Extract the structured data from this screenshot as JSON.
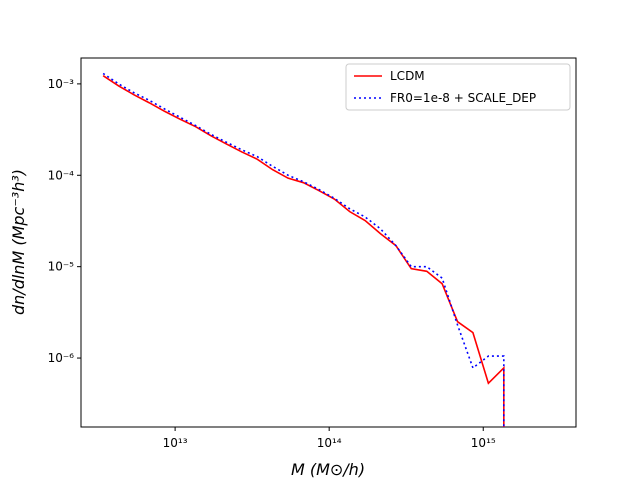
{
  "chart_data": {
    "type": "line",
    "xlabel": "M (M⊙/h)",
    "ylabel": "dn/dlnM (Mpc⁻³h³)",
    "xscale": "log",
    "yscale": "log",
    "xlim": [
      2450000000000.0,
      4000000000000000.0
    ],
    "ylim": [
      1.76e-07,
      0.00192
    ],
    "xticks": [
      {
        "value": 10000000000000.0,
        "label": "10¹³"
      },
      {
        "value": 100000000000000.0,
        "label": "10¹⁴"
      },
      {
        "value": 1000000000000000.0,
        "label": "10¹⁵"
      }
    ],
    "yticks": [
      {
        "value": 1e-06,
        "label": "10⁻⁶"
      },
      {
        "value": 1e-05,
        "label": "10⁻⁵"
      },
      {
        "value": 0.0001,
        "label": "10⁻⁴"
      },
      {
        "value": 0.001,
        "label": "10⁻³"
      }
    ],
    "legend": "upper right",
    "x": [
      3410000000000.0,
      4300000000000.0,
      5410000000000.0,
      6810000000000.0,
      8570000000000.0,
      10800000000000.0,
      13600000000000.0,
      17100000000000.0,
      21500000000000.0,
      27100000000000.0,
      34100000000000.0,
      43000000000000.0,
      54100000000000.0,
      68100000000000.0,
      85700000000000.0,
      108000000000000.0,
      136000000000000.0,
      171000000000000.0,
      215000000000000.0,
      271000000000000.0,
      341000000000000.0,
      430000000000000.0,
      541000000000000.0,
      681000000000000.0,
      857000000000000.0,
      1080000000000000.0,
      1360000000000000.0,
      1360000000000000.0
    ],
    "series": [
      {
        "name": "LCDM",
        "color": "#ff0000",
        "dash": "solid",
        "values": [
          0.00123,
          0.00095,
          0.00076,
          0.00062,
          0.0005,
          0.00041,
          0.00034,
          0.00027,
          0.00022,
          0.00018,
          0.00015,
          0.000115,
          9.3e-05,
          8.3e-05,
          6.8e-05,
          5.5e-05,
          4e-05,
          3.2e-05,
          2.3e-05,
          1.7e-05,
          9.5e-06,
          8.9e-06,
          6.5e-06,
          2.5e-06,
          1.9e-06,
          5.3e-07,
          7.8e-07,
          1e-07
        ]
      },
      {
        "name": "FR0=1e-8 + SCALE_DEP",
        "color": "#0000ff",
        "dash": "dotted",
        "values": [
          0.0013,
          0.001,
          0.0008,
          0.00066,
          0.00053,
          0.00043,
          0.00035,
          0.00028,
          0.00023,
          0.00019,
          0.00016,
          0.000125,
          0.0001,
          8.5e-05,
          7e-05,
          5.6e-05,
          4.3e-05,
          3.5e-05,
          2.6e-05,
          1.7e-05,
          1e-05,
          1e-05,
          7.5e-06,
          2.3e-06,
          7.8e-07,
          1.05e-06,
          1.05e-06,
          1e-07
        ]
      }
    ]
  }
}
